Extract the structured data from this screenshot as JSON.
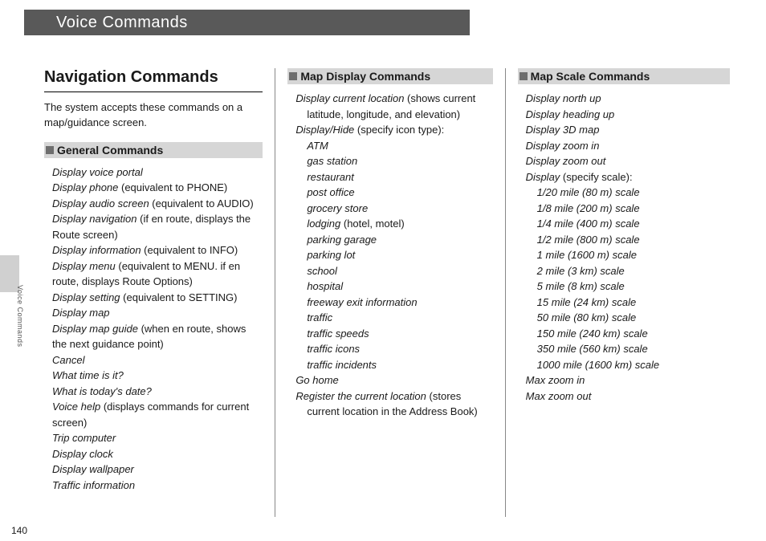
{
  "header": {
    "title": "Voice Commands"
  },
  "sideTab": {
    "label": "Voice Commands"
  },
  "pageNumber": "140",
  "sectionTitle": "Navigation Commands",
  "intro": "The system accepts these commands on a map/guidance screen.",
  "general": {
    "heading": "General Commands",
    "items": [
      {
        "i": "Display voice portal"
      },
      {
        "i": "Display phone",
        "n": " (equivalent to PHONE)"
      },
      {
        "i": "Display audio screen",
        "n": " (equivalent to AUDIO)"
      },
      {
        "i": "Display navigation",
        "n": " (if en route, displays the Route screen)"
      },
      {
        "i": "Display information",
        "n": " (equivalent to INFO)"
      },
      {
        "i": "Display menu",
        "n": " (equivalent to MENU. if en route, displays Route Options)"
      },
      {
        "i": "Display setting",
        "n": " (equivalent to SETTING)"
      },
      {
        "i": "Display map"
      },
      {
        "i": "Display map guide",
        "n": " (when en route, shows the next guidance point)"
      },
      {
        "i": "Cancel"
      },
      {
        "i": "What time is it?"
      },
      {
        "i": "What is today's date?"
      },
      {
        "i": "Voice help",
        "n": " (displays commands for current screen)"
      },
      {
        "i": "Trip computer"
      },
      {
        "i": "Display clock"
      },
      {
        "i": "Display wallpaper"
      },
      {
        "i": "Traffic information"
      }
    ]
  },
  "mapDisplay": {
    "heading": "Map Display Commands",
    "lead1": {
      "i": "Display current location",
      "n": " (shows current latitude, longitude, and elevation)"
    },
    "lead2": {
      "i": "Display/Hide",
      "n": " (specify icon type):"
    },
    "iconTypes": [
      "ATM",
      "gas station",
      "restaurant",
      "post office",
      "grocery store",
      "lodging",
      "parking garage",
      "parking lot",
      "school",
      "hospital",
      "freeway exit information",
      "traffic",
      "traffic speeds",
      "traffic icons",
      "traffic incidents"
    ],
    "lodgingNote": " (hotel, motel)",
    "tail1": {
      "i": "Go home"
    },
    "tail2": {
      "i": "Register the current location",
      "n": " (stores current location in the Address Book)"
    }
  },
  "mapScale": {
    "heading": "Map Scale Commands",
    "top": [
      "Display north up",
      "Display heading up",
      "Display 3D map",
      "Display zoom in",
      "Display zoom out"
    ],
    "lead": {
      "i": "Display",
      "n": " (specify scale):"
    },
    "scales": [
      "1/20 mile (80 m) scale",
      "1/8 mile (200 m) scale",
      "1/4 mile (400 m) scale",
      "1/2 mile (800 m) scale",
      "1 mile (1600 m) scale",
      "2 mile (3 km) scale",
      "5 mile (8 km) scale",
      "15 mile (24 km) scale",
      "50 mile (80 km) scale",
      "150 mile (240 km) scale",
      "350 mile (560 km) scale",
      "1000 mile (1600 km) scale"
    ],
    "bottom": [
      "Max zoom in",
      "Max zoom out"
    ]
  }
}
